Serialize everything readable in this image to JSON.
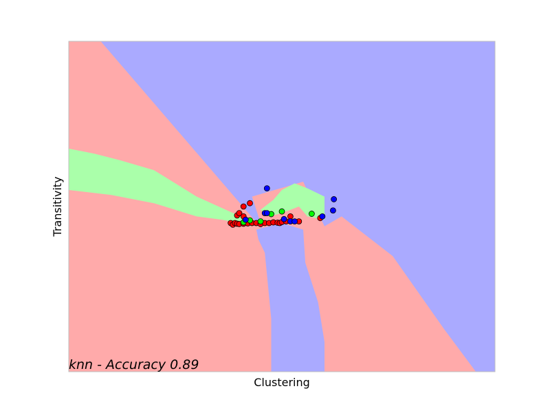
{
  "chart_data": {
    "type": "scatter",
    "title": "",
    "xlabel": "Clustering",
    "ylabel": "Transitivity",
    "annotation": "knn - Accuracy 0.89",
    "xlim": [
      0,
      1
    ],
    "ylim": [
      0,
      1
    ],
    "xticks": [],
    "yticks": [],
    "grid": false,
    "legend": "none",
    "colors": {
      "region_red": "#ffaaaa",
      "region_green": "#aaffaa",
      "region_blue": "#aaaaff",
      "point_red": "#ff0000",
      "point_green": "#00ff00",
      "point_blue": "#0000ff",
      "frame": "#bfbfbf"
    },
    "decision_regions": {
      "description_classes": [
        "red",
        "green",
        "blue"
      ],
      "blue_upper_boundary": [
        [
          0.075,
          1.0
        ],
        [
          0.9,
          1.0
        ],
        [
          0.9,
          0.0
        ],
        [
          0.95,
          0.0
        ],
        [
          0.95,
          0.0
        ],
        [
          0.36,
          0.43
        ],
        [
          0.075,
          1.0
        ]
      ],
      "green_band_left": [
        [
          0.0,
          0.675
        ],
        [
          0.36,
          0.465
        ],
        [
          0.36,
          0.435
        ],
        [
          0.0,
          0.55
        ]
      ],
      "green_band_right": [
        [
          0.43,
          0.53
        ],
        [
          0.55,
          0.575
        ],
        [
          0.6,
          0.525
        ],
        [
          0.6,
          0.44
        ],
        [
          0.5,
          0.47
        ],
        [
          0.43,
          0.47
        ]
      ],
      "blue_lower_channel": [
        [
          0.445,
          0.4
        ],
        [
          0.6,
          0.44
        ],
        [
          0.6,
          0.0
        ],
        [
          0.475,
          0.0
        ],
        [
          0.475,
          0.16
        ],
        [
          0.46,
          0.36
        ],
        [
          0.445,
          0.4
        ]
      ]
    },
    "series": [
      {
        "name": "",
        "color": "red",
        "points": [
          [
            0.38,
            0.45
          ],
          [
            0.385,
            0.445
          ],
          [
            0.39,
            0.45
          ],
          [
            0.395,
            0.448
          ],
          [
            0.4,
            0.447
          ],
          [
            0.41,
            0.448
          ],
          [
            0.42,
            0.449
          ],
          [
            0.43,
            0.45
          ],
          [
            0.44,
            0.45
          ],
          [
            0.45,
            0.447
          ],
          [
            0.46,
            0.45
          ],
          [
            0.47,
            0.45
          ],
          [
            0.48,
            0.452
          ],
          [
            0.49,
            0.451
          ],
          [
            0.495,
            0.45
          ],
          [
            0.5,
            0.453
          ],
          [
            0.51,
            0.455
          ],
          [
            0.52,
            0.47
          ],
          [
            0.54,
            0.455
          ],
          [
            0.59,
            0.465
          ],
          [
            0.41,
            0.47
          ],
          [
            0.395,
            0.473
          ],
          [
            0.4,
            0.48
          ],
          [
            0.41,
            0.5
          ],
          [
            0.425,
            0.51
          ]
        ]
      },
      {
        "name": "",
        "color": "green",
        "points": [
          [
            0.425,
            0.458
          ],
          [
            0.45,
            0.455
          ],
          [
            0.475,
            0.477
          ],
          [
            0.5,
            0.485
          ],
          [
            0.57,
            0.478
          ],
          [
            0.41,
            0.452
          ]
        ]
      },
      {
        "name": "",
        "color": "blue",
        "points": [
          [
            0.415,
            0.46
          ],
          [
            0.46,
            0.48
          ],
          [
            0.465,
            0.48
          ],
          [
            0.505,
            0.462
          ],
          [
            0.52,
            0.455
          ],
          [
            0.53,
            0.455
          ],
          [
            0.595,
            0.47
          ],
          [
            0.465,
            0.555
          ],
          [
            0.62,
            0.488
          ],
          [
            0.622,
            0.522
          ]
        ]
      }
    ]
  }
}
